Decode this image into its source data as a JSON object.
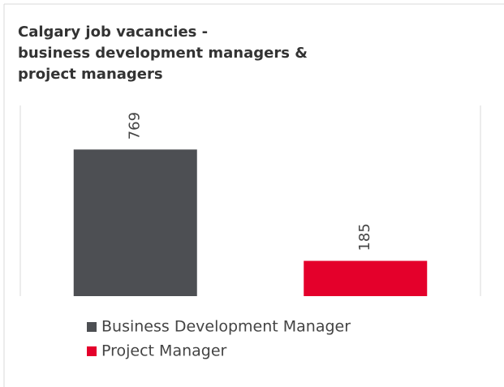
{
  "chart_data": {
    "type": "bar",
    "title": [
      "Calgary job vacancies -",
      "business  development managers &",
      "project managers"
    ],
    "categories": [
      null
    ],
    "series": [
      {
        "name": "Business Development Manager",
        "color": "#4d4f53",
        "values": [
          769
        ]
      },
      {
        "name": "Project Manager",
        "color": "#e4002b",
        "values": [
          185
        ]
      }
    ],
    "ylim": [
      0,
      1000
    ],
    "legend": "bottom"
  }
}
